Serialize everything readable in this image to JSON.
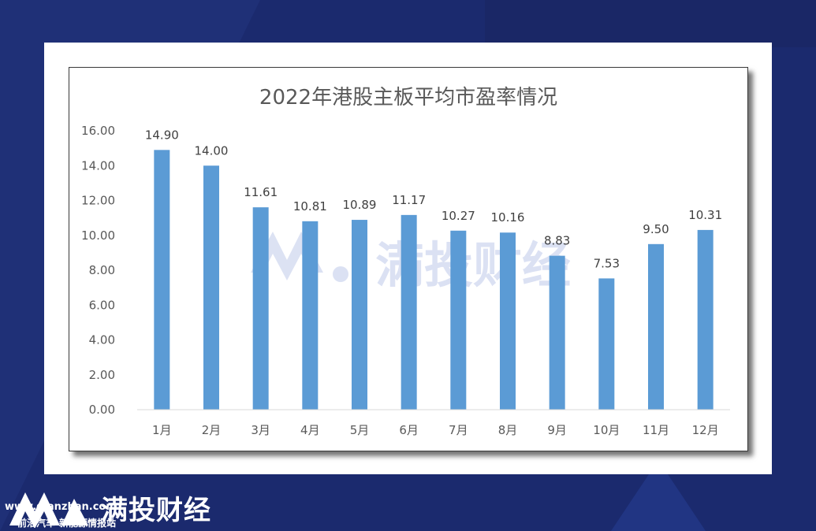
{
  "chart_data": {
    "type": "bar",
    "title": "2022年港股主板平均市盈率情况",
    "categories": [
      "1月",
      "2月",
      "3月",
      "4月",
      "5月",
      "6月",
      "7月",
      "8月",
      "9月",
      "10月",
      "11月",
      "12月"
    ],
    "values": [
      14.9,
      14.0,
      11.61,
      10.81,
      10.89,
      11.17,
      10.27,
      10.16,
      8.83,
      7.53,
      9.5,
      10.31
    ],
    "value_labels": [
      "14.90",
      "14.00",
      "11.61",
      "10.81",
      "10.89",
      "11.17",
      "10.27",
      "10.16",
      "8.83",
      "7.53",
      "9.50",
      "10.31"
    ],
    "yticks": [
      "0.00",
      "2.00",
      "4.00",
      "6.00",
      "8.00",
      "10.00",
      "12.00",
      "14.00",
      "16.00"
    ],
    "ylim": [
      0,
      16
    ],
    "bar_color": "#5b9bd5",
    "xlabel": "",
    "ylabel": "",
    "grid": false
  },
  "watermark": {
    "text": "满投财经"
  },
  "footer": {
    "brand": "满投财经",
    "url": "www.qianzhan.com",
    "subtitle": "前沿汽车-新能源情报站"
  }
}
